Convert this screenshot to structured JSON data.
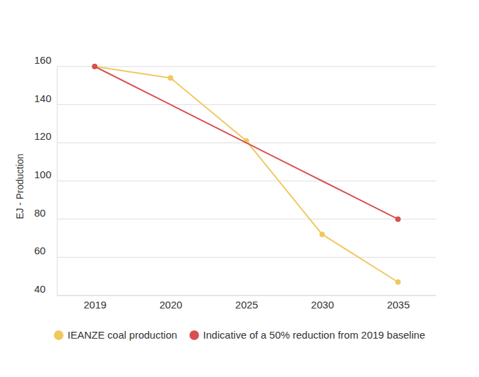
{
  "chart_data": {
    "type": "line",
    "categories": [
      "2019",
      "2020",
      "2025",
      "2030",
      "2035"
    ],
    "ylabel": "EJ - Production",
    "series": [
      {
        "name": "IEANZE coal production",
        "color": "#efc95f",
        "marker": "circle",
        "values": [
          160,
          154,
          121,
          72,
          47
        ]
      },
      {
        "name": "Indicative of a 50% reduction from 2019 baseline",
        "color": "#d94f4f",
        "marker": "ends",
        "values": [
          160,
          140,
          120,
          100,
          80
        ]
      }
    ],
    "ylim": [
      40,
      160
    ],
    "yticks": [
      40,
      60,
      80,
      100,
      120,
      140,
      160
    ],
    "grid": true,
    "legend": "bottom"
  }
}
